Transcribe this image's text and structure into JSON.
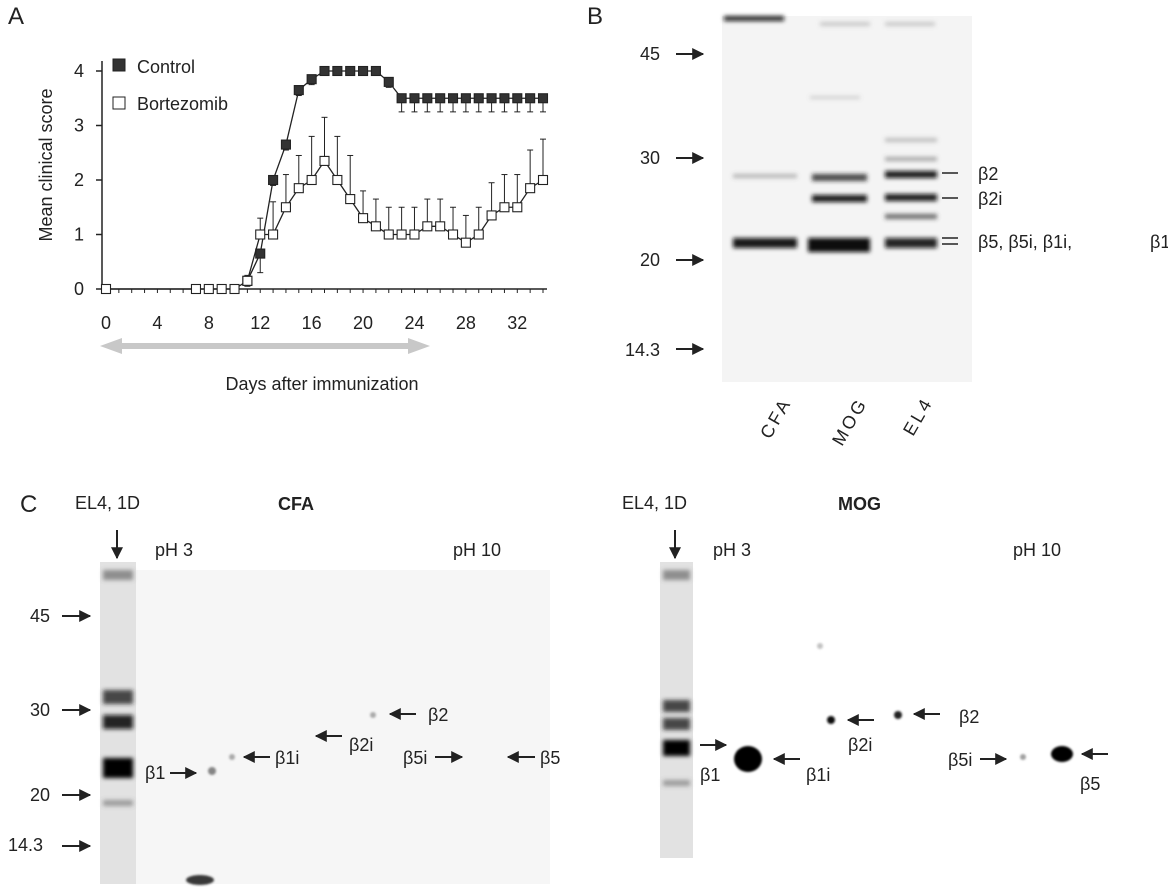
{
  "colors": {
    "ink": "#222222",
    "blot_bg": "#f4f4f4",
    "arrow_gray": "#c8c8c8"
  },
  "panel_a": {
    "letter": "A",
    "ylabel": "Mean clinical score",
    "xlabel": "Days after immunization",
    "chart_data": {
      "type": "line",
      "ylim": [
        0,
        4
      ],
      "xlim": [
        0,
        34
      ],
      "x_ticks": [
        0,
        4,
        8,
        12,
        16,
        20,
        24,
        28,
        32
      ],
      "y_ticks": [
        0,
        1,
        2,
        3,
        4
      ],
      "legend_position": "top-left",
      "series": [
        {
          "name": "Control",
          "marker": "filled-square",
          "x": [
            11,
            12,
            13,
            14,
            15,
            16,
            17,
            18,
            19,
            20,
            21,
            22,
            23,
            24,
            25,
            26,
            27,
            28,
            29,
            30,
            31,
            32,
            33,
            34
          ],
          "y": [
            0.15,
            0.65,
            2.0,
            2.65,
            3.65,
            3.85,
            4.0,
            4.0,
            4.0,
            4.0,
            4.0,
            3.8,
            3.5,
            3.5,
            3.5,
            3.5,
            3.5,
            3.5,
            3.5,
            3.5,
            3.5,
            3.5,
            3.5,
            3.5
          ],
          "error": [
            0.1,
            0.35,
            0.1,
            0.1,
            0.1,
            0.1,
            0,
            0,
            0,
            0,
            0,
            0.1,
            0.25,
            0.25,
            0.25,
            0.25,
            0.25,
            0.25,
            0.25,
            0.25,
            0.25,
            0.25,
            0.25,
            0.25
          ]
        },
        {
          "name": "Bortezomib",
          "marker": "open-square",
          "x": [
            0,
            7,
            8,
            9,
            10,
            11,
            12,
            13,
            14,
            15,
            16,
            17,
            18,
            19,
            20,
            21,
            22,
            23,
            24,
            25,
            26,
            27,
            28,
            29,
            30,
            31,
            32,
            33,
            34
          ],
          "y": [
            0,
            0,
            0,
            0,
            0,
            0.15,
            1.0,
            1.0,
            1.5,
            1.85,
            2.0,
            2.35,
            2.0,
            1.65,
            1.3,
            1.15,
            1.0,
            1.0,
            1.0,
            1.15,
            1.15,
            1.0,
            0.85,
            1.0,
            1.35,
            1.5,
            1.5,
            1.85,
            2.0
          ],
          "error": [
            0,
            0,
            0,
            0,
            0,
            0.1,
            0.3,
            0.6,
            0.6,
            0.6,
            0.8,
            0.8,
            0.8,
            0.8,
            0.5,
            0.5,
            0.5,
            0.5,
            0.5,
            0.5,
            0.5,
            0.5,
            0.5,
            0.5,
            0.6,
            0.6,
            0.6,
            0.7,
            0.75
          ]
        }
      ],
      "annotation": "double-headed gray arrow spanning days 0 to 24"
    }
  },
  "panel_b": {
    "letter": "B",
    "mw_markers": [
      "45",
      "30",
      "20",
      "14.3"
    ],
    "lanes": [
      "CFA",
      "MOG",
      "EL4"
    ],
    "band_labels": [
      "β2",
      "β2i",
      "β5,  β5i,  β1i,",
      "β1"
    ]
  },
  "panel_c": {
    "letter": "C",
    "mw_markers": [
      "45",
      "30",
      "20",
      "14.3"
    ],
    "blots": [
      {
        "title": "CFA",
        "lane_label": "EL4, 1D",
        "ph_low": "pH 3",
        "ph_high": "pH 10",
        "spots": [
          "β1",
          "β1i",
          "β2i",
          "β2",
          "β5i",
          "β5"
        ]
      },
      {
        "title": "MOG",
        "lane_label": "EL4, 1D",
        "ph_low": "pH 3",
        "ph_high": "pH 10",
        "spots": [
          "β1",
          "β1i",
          "β2i",
          "β2",
          "β5i",
          "β5"
        ]
      }
    ]
  }
}
